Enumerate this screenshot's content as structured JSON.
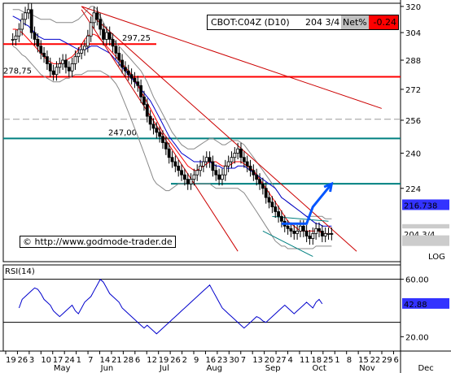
{
  "header": {
    "symbol": "CBOT:C04Z (D10)",
    "last": "204 3/4",
    "net_label": "Net%",
    "net_value": "-0.24"
  },
  "watermark": "© http://www.godmode-trader.de",
  "log_label": "LOG",
  "colors": {
    "price_up": "#ffffff",
    "price_down": "#000000",
    "sma_fast": "#ff0000",
    "sma_slow": "#0000cc",
    "bollinger": "#888888",
    "resistance": "#ff0000",
    "support": "#008080",
    "trend": "#cc0000",
    "rsi": "#0000cc",
    "arrow": "#0055ff",
    "net_bg": "#ff0000",
    "marker_1": "#3333ff",
    "marker_2": "#ffffff"
  },
  "chart_data": [
    {
      "type": "candlestick",
      "title": "CBOT:C04Z (D10)",
      "ylim": [
        194,
        322
      ],
      "yscale": "log",
      "y_ticks": [
        320,
        304,
        288,
        272,
        256,
        240,
        224
      ],
      "x_ticks": [
        "19",
        "26",
        "3",
        "10",
        "17",
        "24",
        "1",
        "7",
        "14",
        "21",
        "28",
        "6",
        "12",
        "19",
        "26",
        "2",
        "9",
        "16",
        "23",
        "30",
        "7",
        "13",
        "20",
        "27",
        "4",
        "11",
        "18",
        "25",
        "1",
        "8",
        "15",
        "22",
        "29",
        "6"
      ],
      "month_labels": [
        {
          "label": "May",
          "day_index": 2
        },
        {
          "label": "Jun",
          "day_index": 6
        },
        {
          "label": "Jul",
          "day_index": 11
        },
        {
          "label": "Aug",
          "day_index": 15
        },
        {
          "label": "Sep",
          "day_index": 20
        },
        {
          "label": "Oct",
          "day_index": 24
        },
        {
          "label": "Nov",
          "day_index": 28
        },
        {
          "label": "Dec",
          "day_index": 33
        }
      ],
      "horizontal_levels": [
        {
          "value": 297.25,
          "label": "297,25",
          "color": "#ff0000",
          "extent": "partial"
        },
        {
          "value": 278.75,
          "label": "278,75",
          "color": "#ff0000",
          "extent": "full"
        },
        {
          "value": 256.5,
          "label": "",
          "color": "#999999",
          "style": "dashed",
          "extent": "full"
        },
        {
          "value": 247.0,
          "label": "247,00",
          "color": "#008080",
          "extent": "full"
        },
        {
          "value": 226.0,
          "label": "",
          "color": "#008080",
          "extent": "partial"
        }
      ],
      "price_markers": [
        {
          "value": 216.738,
          "label": "216.738",
          "bg": "#3333ff",
          "fg": "#ffffff"
        },
        {
          "value": 206.5,
          "label": "",
          "bg": "#cccccc",
          "fg": "#888888"
        },
        {
          "value": 204.75,
          "label": "204 3/4",
          "bg": "#ffffff",
          "fg": "#000000"
        },
        {
          "value": 202.0,
          "label": "",
          "bg": "#cccccc",
          "fg": "#888888"
        }
      ],
      "close": [
        300,
        302,
        306,
        312,
        316,
        318,
        304,
        300,
        296,
        292,
        290,
        286,
        282,
        280,
        284,
        286,
        288,
        284,
        282,
        286,
        290,
        292,
        294,
        296,
        302,
        310,
        316,
        312,
        306,
        300,
        304,
        300,
        296,
        292,
        288,
        284,
        282,
        280,
        278,
        276,
        274,
        268,
        264,
        258,
        254,
        252,
        250,
        248,
        245,
        242,
        238,
        236,
        234,
        232,
        230,
        228,
        226,
        228,
        230,
        232,
        234,
        236,
        238,
        236,
        232,
        230,
        228,
        230,
        234,
        236,
        238,
        240,
        242,
        238,
        236,
        234,
        232,
        230,
        228,
        226,
        224,
        220,
        218,
        216,
        214,
        212,
        210,
        208,
        207,
        206,
        205,
        206,
        208,
        206,
        204,
        203,
        205,
        207,
        206,
        204,
        205,
        205,
        204.75
      ],
      "sma_fast": [
        306,
        306,
        305,
        304,
        302,
        300,
        298,
        296,
        294,
        292,
        290,
        288,
        287,
        286,
        286,
        286,
        287,
        288,
        289,
        290,
        292,
        294,
        297,
        300,
        302,
        303,
        303,
        302,
        300,
        298,
        296,
        294,
        292,
        290,
        288,
        286,
        284,
        282,
        280,
        277,
        274,
        271,
        268,
        265,
        262,
        259,
        256,
        253,
        250,
        248,
        246,
        244,
        242,
        240,
        238,
        236,
        234,
        233,
        232,
        232,
        233,
        234,
        235,
        236,
        236,
        236,
        235,
        234,
        234,
        234,
        235,
        236,
        236,
        236,
        235,
        234,
        233,
        232,
        230,
        228,
        226,
        224,
        222,
        220,
        218,
        216,
        214,
        212,
        210,
        209,
        208,
        207,
        206,
        206,
        206,
        206,
        206,
        206,
        206,
        205,
        205,
        205,
        205
      ],
      "sma_slow": [
        314,
        313,
        312,
        310,
        309,
        308,
        306,
        304,
        302,
        301,
        300,
        300,
        300,
        300,
        300,
        300,
        299,
        298,
        297,
        296,
        295,
        294,
        294,
        294,
        295,
        296,
        296,
        296,
        295,
        294,
        293,
        292,
        290,
        288,
        286,
        284,
        282,
        280,
        278,
        276,
        274,
        272,
        270,
        268,
        266,
        263,
        260,
        257,
        254,
        251,
        248,
        246,
        244,
        242,
        240,
        239,
        238,
        237,
        236,
        236,
        236,
        236,
        236,
        236,
        235,
        234,
        234,
        233,
        233,
        233,
        233,
        233,
        234,
        234,
        234,
        233,
        232,
        231,
        230,
        229,
        228,
        227,
        226,
        225,
        224,
        222,
        220,
        219,
        218,
        217,
        216,
        215,
        214,
        213,
        212,
        211,
        210,
        209,
        209,
        208,
        208,
        208,
        208
      ],
      "bollinger_upper": [
        318,
        318,
        318,
        317,
        316,
        316,
        315,
        314,
        313,
        312,
        312,
        312,
        312,
        311,
        310,
        310,
        310,
        310,
        310,
        310,
        311,
        312,
        314,
        316,
        318,
        320,
        320,
        318,
        314,
        310,
        306,
        302,
        300,
        298,
        296,
        294,
        292,
        290,
        288,
        286,
        284,
        282,
        279,
        276,
        272,
        268,
        265,
        262,
        259,
        256,
        253,
        250,
        248,
        246,
        244,
        243,
        242,
        242,
        242,
        243,
        244,
        245,
        246,
        247,
        247,
        246,
        245,
        244,
        244,
        245,
        246,
        246,
        246,
        245,
        244,
        242,
        240,
        238,
        236,
        234,
        232,
        230,
        228,
        226,
        224,
        222,
        220,
        219,
        218,
        217,
        216,
        215,
        214,
        213,
        212,
        212,
        212,
        212,
        212,
        212,
        211,
        211,
        211
      ],
      "bollinger_lower": [
        296,
        295,
        293,
        291,
        290,
        288,
        286,
        284,
        282,
        280,
        279,
        278,
        277,
        276,
        276,
        276,
        277,
        278,
        278,
        279,
        280,
        280,
        280,
        281,
        282,
        282,
        282,
        282,
        282,
        281,
        280,
        279,
        277,
        275,
        272,
        268,
        264,
        260,
        256,
        252,
        248,
        244,
        240,
        236,
        232,
        228,
        226,
        225,
        224,
        223,
        223,
        224,
        225,
        226,
        226,
        226,
        226,
        226,
        226,
        226,
        226,
        226,
        226,
        226,
        225,
        224,
        224,
        224,
        224,
        224,
        224,
        224,
        224,
        223,
        222,
        220,
        218,
        216,
        214,
        212,
        210,
        208,
        206,
        204,
        202,
        201,
        200,
        200,
        199,
        199,
        199,
        199,
        199,
        199,
        199,
        199,
        199,
        200,
        200,
        200,
        200,
        200,
        200
      ],
      "trend_lines": [
        {
          "from": {
            "day": 24,
            "value": 320
          },
          "to": {
            "day": 120,
            "value": 262
          },
          "color": "#cc0000"
        },
        {
          "from": {
            "day": 24,
            "value": 320
          },
          "to": {
            "day": 112,
            "value": 198
          },
          "color": "#cc0000"
        },
        {
          "from": {
            "day": 24,
            "value": 318
          },
          "to": {
            "day": 74,
            "value": 198
          },
          "color": "#cc0000"
        },
        {
          "from": {
            "day": 85,
            "value": 212
          },
          "to": {
            "day": 103,
            "value": 210
          },
          "color": "#008080"
        },
        {
          "from": {
            "day": 82,
            "value": 206
          },
          "to": {
            "day": 98,
            "value": 196
          },
          "color": "#008080"
        }
      ],
      "arrow": {
        "path": [
          {
            "day": 88,
            "value": 209
          },
          {
            "day": 96,
            "value": 209
          },
          {
            "day": 98,
            "value": 216
          },
          {
            "day": 104,
            "value": 226
          }
        ],
        "color": "#0055ff"
      }
    },
    {
      "type": "line",
      "title": "RSI(14)",
      "ylim": [
        10,
        70
      ],
      "y_ticks": [
        60,
        20
      ],
      "reference_lines": [
        60,
        30
      ],
      "series": [
        {
          "name": "RSI(14)",
          "last_label": "42.88",
          "values": [
            40,
            46,
            48,
            50,
            52,
            54,
            53,
            50,
            46,
            44,
            42,
            38,
            36,
            34,
            36,
            38,
            40,
            42,
            38,
            36,
            40,
            44,
            46,
            48,
            52,
            56,
            60,
            58,
            54,
            50,
            48,
            46,
            44,
            40,
            38,
            36,
            34,
            32,
            30,
            28,
            26,
            28,
            26,
            24,
            22,
            24,
            26,
            28,
            30,
            32,
            34,
            36,
            38,
            40,
            42,
            44,
            46,
            48,
            50,
            52,
            54,
            56,
            52,
            48,
            44,
            40,
            38,
            36,
            34,
            32,
            30,
            28,
            26,
            28,
            30,
            32,
            34,
            33,
            31,
            30,
            32,
            34,
            36,
            38,
            40,
            42,
            40,
            38,
            36,
            38,
            40,
            42,
            44,
            42,
            40,
            44,
            46,
            42.88
          ]
        }
      ]
    }
  ]
}
